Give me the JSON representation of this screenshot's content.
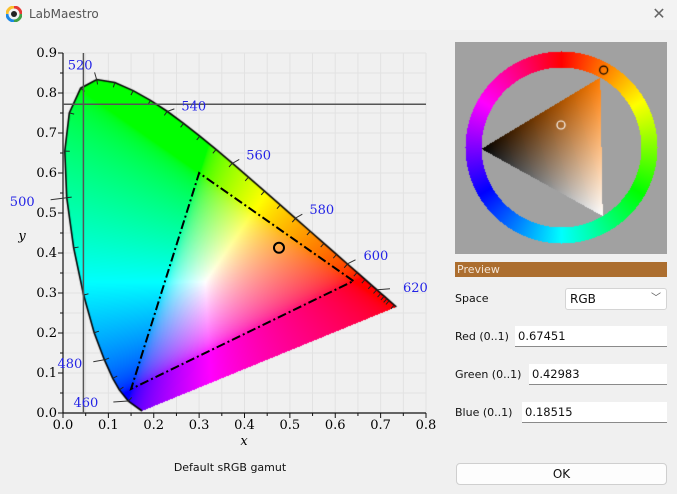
{
  "window": {
    "title": "LabMaestro",
    "close_icon": "close-icon"
  },
  "colors": {
    "preview": "#ac6e2f",
    "accent_labels": "#2323e6"
  },
  "chart_data": {
    "type": "scatter",
    "title": "",
    "caption": "Default sRGB gamut",
    "xlabel": "x",
    "ylabel": "y",
    "xlim": [
      0.0,
      0.8
    ],
    "ylim": [
      0.0,
      0.9
    ],
    "xticks": [
      "0.0",
      "0.1",
      "0.2",
      "0.3",
      "0.4",
      "0.5",
      "0.6",
      "0.7",
      "0.8"
    ],
    "yticks": [
      "0.0",
      "0.1",
      "0.2",
      "0.3",
      "0.4",
      "0.5",
      "0.6",
      "0.7",
      "0.8",
      "0.9"
    ],
    "wavelength_labels": [
      {
        "nm": "460",
        "x": 0.144,
        "y": 0.03
      },
      {
        "nm": "480",
        "x": 0.091,
        "y": 0.133
      },
      {
        "nm": "500",
        "x": 0.008,
        "y": 0.538
      },
      {
        "nm": "520",
        "x": 0.074,
        "y": 0.834
      },
      {
        "nm": "540",
        "x": 0.23,
        "y": 0.754
      },
      {
        "nm": "560",
        "x": 0.373,
        "y": 0.624
      },
      {
        "nm": "580",
        "x": 0.512,
        "y": 0.487
      },
      {
        "nm": "600",
        "x": 0.627,
        "y": 0.373
      },
      {
        "nm": "620",
        "x": 0.692,
        "y": 0.308
      }
    ],
    "gamut_triangle": [
      [
        0.64,
        0.33
      ],
      [
        0.3,
        0.6
      ],
      [
        0.15,
        0.06
      ]
    ],
    "selected_point": {
      "x": 0.476,
      "y": 0.413
    },
    "crosshair": {
      "x": 0.045,
      "y": 0.772
    },
    "grid": false
  },
  "color_wheel": {
    "hue_deg": 29,
    "marker": "ring-marker",
    "triangle_marker": "sv-marker"
  },
  "panel": {
    "preview_label": "Preview",
    "space_label": "Space",
    "space_value": "RGB",
    "red_label": "Red (0..1)",
    "red_value": "0.67451",
    "green_label": "Green (0..1)",
    "green_value": "0.42983",
    "blue_label": "Blue (0..1)",
    "blue_value": "0.18515",
    "ok_label": "OK"
  }
}
